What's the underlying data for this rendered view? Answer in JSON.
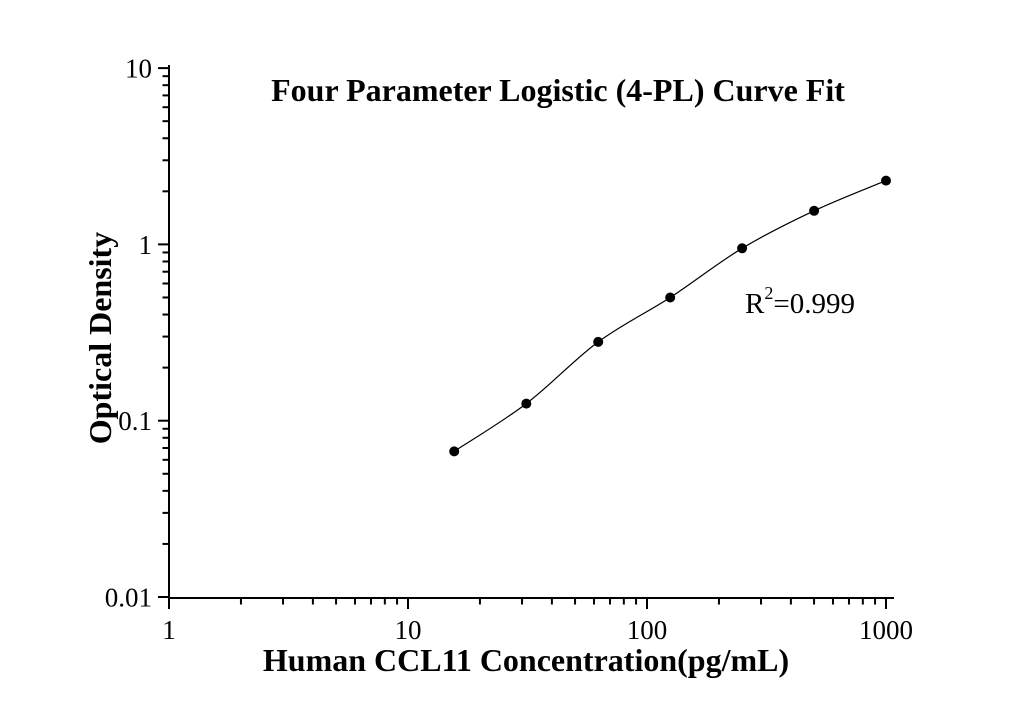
{
  "figure": {
    "background": "#ffffff"
  },
  "chart_data": {
    "type": "scatter",
    "title": "Four Parameter Logistic (4-PL) Curve Fit",
    "xlabel": "Human CCL11 Concentration(pg/mL)",
    "ylabel": "Optical Density",
    "x_scale": "log",
    "y_scale": "log",
    "xlim": [
      1,
      1000
    ],
    "ylim": [
      0.01,
      10
    ],
    "x_ticks": [
      1,
      10,
      100,
      1000
    ],
    "y_ticks": [
      10,
      1,
      0.1,
      0.01
    ],
    "x": [
      15.6,
      31.25,
      62.5,
      125,
      250,
      500,
      1000
    ],
    "y": [
      0.067,
      0.125,
      0.28,
      0.5,
      0.95,
      1.55,
      2.3
    ],
    "fit_type": "4-PL",
    "r_squared": "0.999",
    "annotation": {
      "label": "R",
      "superscript": "2",
      "value": "=0.999"
    },
    "marker_color": "#000000",
    "line_color": "#000000",
    "axis_color": "#000000",
    "grid": false,
    "legend": false
  }
}
